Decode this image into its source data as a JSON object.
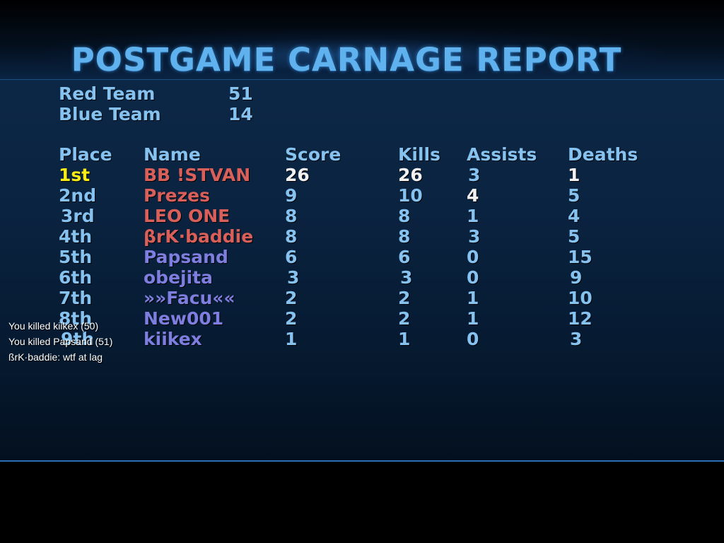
{
  "title": "POSTGAME CARNAGE REPORT",
  "teams": [
    {
      "name": "Red Team",
      "score": "51"
    },
    {
      "name": "Blue Team",
      "score": "14"
    }
  ],
  "headers": {
    "place": "Place",
    "name": "Name",
    "score": "Score",
    "kills": "Kills",
    "assists": "Assists",
    "deaths": "Deaths"
  },
  "players": [
    {
      "place": "1st",
      "name": "BB !STVAN",
      "score": "26",
      "kills": "26",
      "assists": "3",
      "deaths": "1",
      "team": "red"
    },
    {
      "place": "2nd",
      "name": "Prezes",
      "score": "9",
      "kills": "10",
      "assists": "4",
      "deaths": "5",
      "team": "red"
    },
    {
      "place": "3rd",
      "name": "LEO ONE",
      "score": "8",
      "kills": "8",
      "assists": "1",
      "deaths": "4",
      "team": "red"
    },
    {
      "place": "4th",
      "name": "βrK·baddie",
      "score": "8",
      "kills": "8",
      "assists": "3",
      "deaths": "5",
      "team": "red"
    },
    {
      "place": "5th",
      "name": "Papsand",
      "score": "6",
      "kills": "6",
      "assists": "0",
      "deaths": "15",
      "team": "blue"
    },
    {
      "place": "6th",
      "name": "obejita",
      "score": "3",
      "kills": "3",
      "assists": "0",
      "deaths": "9",
      "team": "blue"
    },
    {
      "place": "7th",
      "name": "»»Facu««",
      "score": "2",
      "kills": "2",
      "assists": "1",
      "deaths": "10",
      "team": "blue"
    },
    {
      "place": "8th",
      "name": "New001",
      "score": "2",
      "kills": "2",
      "assists": "1",
      "deaths": "12",
      "team": "blue"
    },
    {
      "place": "9th",
      "name": "kiikex",
      "score": "1",
      "kills": "1",
      "assists": "0",
      "deaths": "3",
      "team": "blue"
    }
  ],
  "chat": [
    "You killed kiikex (50)",
    "You killed Papsand (51)",
    "ßrK·baddie: wtf at lag"
  ],
  "colors": {
    "title": "#5fb2ee",
    "header": "#86c2f0",
    "red_team": "#d9605a",
    "blue_team": "#7e7ee0",
    "first_place": "#f5ec1a",
    "highlight": "#f2f2f2"
  }
}
